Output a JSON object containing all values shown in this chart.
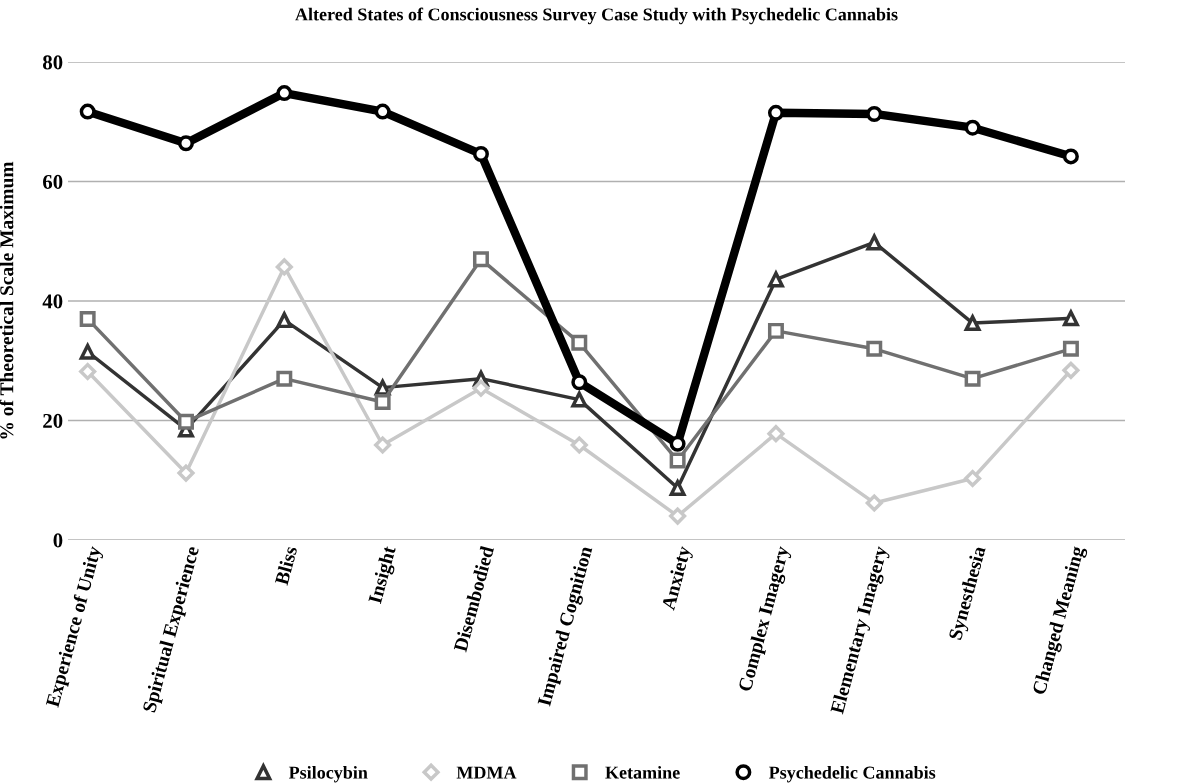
{
  "chart_data": {
    "type": "line",
    "title": "Altered States of Consciousness Survey Case Study with Psychedelic Cannabis",
    "ylabel": "% of Theoretical Scale Maximum",
    "categories": [
      "Experience of Unity",
      "Spiritual Experience",
      "Bliss",
      "Insight",
      "Disembodied",
      "Impaired Cognition",
      "Anxiety",
      "Complex Imagery",
      "Elementary Imagery",
      "Synesthesia",
      "Changed Meaning"
    ],
    "series": [
      {
        "name": "Psilocybin",
        "color": "#333333",
        "marker": "triangle",
        "values": [
          31.5,
          18.5,
          36.8,
          25.5,
          27.0,
          23.5,
          8.7,
          43.6,
          49.8,
          36.3,
          37.1
        ]
      },
      {
        "name": "MDMA",
        "color": "#c8c8c8",
        "marker": "diamond",
        "values": [
          28.2,
          11.2,
          45.7,
          15.9,
          25.4,
          15.9,
          4.0,
          17.8,
          6.2,
          10.3,
          28.4
        ]
      },
      {
        "name": "Ketamine",
        "color": "#707070",
        "marker": "square",
        "values": [
          37.0,
          19.8,
          27.0,
          23.1,
          47.0,
          33.0,
          13.3,
          35.0,
          32.0,
          27.0,
          32.0
        ]
      },
      {
        "name": "Psychedelic Cannabis",
        "color": "#000000",
        "marker": "circle",
        "values": [
          71.7,
          66.4,
          74.8,
          71.7,
          64.6,
          26.4,
          16.1,
          71.5,
          71.3,
          69.0,
          64.2
        ]
      }
    ],
    "ylim": [
      0,
      80
    ],
    "yticks": [
      0,
      20,
      40,
      60,
      80
    ],
    "grid": "y",
    "legend": "bottom"
  }
}
